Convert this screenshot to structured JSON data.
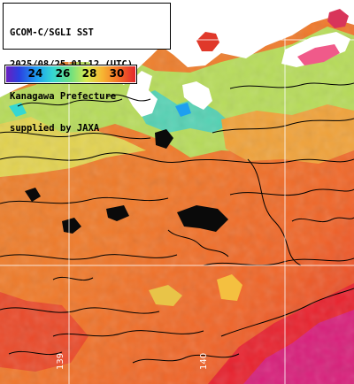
{
  "header": {
    "lines": [
      "GCOM-C/SGLI SST",
      "2025/08/25 01:12 (UTC)",
      "Kanagawa Prefecture",
      "supplied by JAXA"
    ]
  },
  "legend": {
    "ticks": [
      "24",
      "26",
      "28",
      "30"
    ],
    "gradient_colors": [
      "#6a1fc0",
      "#2a40e0",
      "#1e9ff0",
      "#35d7d2",
      "#6fe080",
      "#d8ea52",
      "#f7b733",
      "#f57526",
      "#e3262b"
    ]
  },
  "grid": {
    "lon_labels": [
      "139",
      "140"
    ]
  },
  "colors": {
    "land": "#ffffff",
    "cloud": "#0a0a0a",
    "contour": "#000000",
    "grid_line": "#ffffff"
  }
}
